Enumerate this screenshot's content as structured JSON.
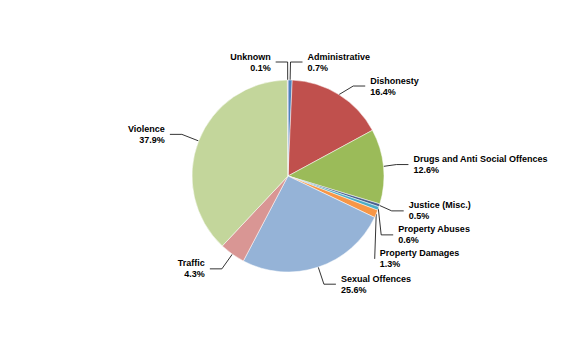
{
  "chart_data": {
    "type": "pie",
    "categories": [
      "Administrative",
      "Dishonesty",
      "Drugs and Anti Social Offences",
      "Justice (Misc.)",
      "Property Abuses",
      "Property Damages",
      "Sexual Offences",
      "Traffic",
      "Violence",
      "Unknown"
    ],
    "values": [
      0.7,
      16.4,
      12.6,
      0.5,
      0.6,
      1.3,
      25.6,
      4.3,
      37.9,
      0.1
    ],
    "value_labels": [
      "0.7%",
      "16.4%",
      "12.6%",
      "0.5%",
      "0.6%",
      "1.3%",
      "25.6%",
      "4.3%",
      "37.9%",
      "0.1%"
    ],
    "colors": [
      "#4f81bd",
      "#c0504d",
      "#9bbb59",
      "#4a5f8f",
      "#4bacc6",
      "#f79646",
      "#95b3d7",
      "#d99694",
      "#c3d69b",
      "#b3a2c7"
    ],
    "data_labels": true
  }
}
